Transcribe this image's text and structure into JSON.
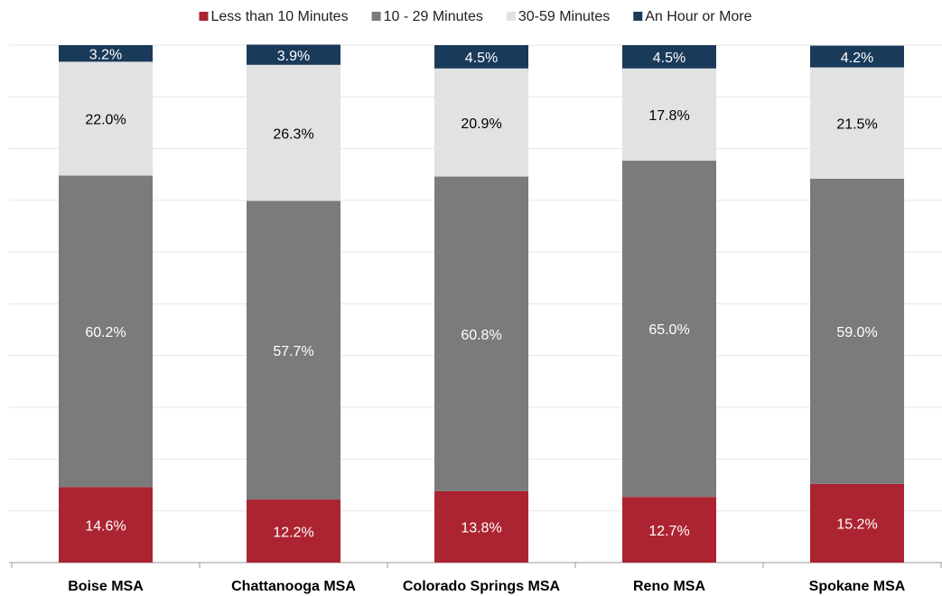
{
  "chart_data": {
    "type": "stacked_bar",
    "categories": [
      "Boise MSA",
      "Chattanooga MSA",
      "Colorado Springs MSA",
      "Reno MSA",
      "Spokane MSA"
    ],
    "series": [
      {
        "name": "Less than 10 Minutes",
        "color": "#ac2431",
        "label_color": "#ffffff",
        "values": [
          14.6,
          12.2,
          13.8,
          12.7,
          15.2
        ],
        "value_labels": [
          "14.6%",
          "12.2%",
          "13.8%",
          "12.7%",
          "15.2%"
        ]
      },
      {
        "name": "10 - 29 Minutes",
        "color": "#7b7b7b",
        "label_color": "#ffffff",
        "values": [
          60.2,
          57.7,
          60.8,
          65.0,
          59.0
        ],
        "value_labels": [
          "60.2%",
          "57.7%",
          "60.8%",
          "65.0%",
          "59.0%"
        ]
      },
      {
        "name": "30-59 Minutes",
        "color": "#e1e2e2",
        "label_color": "#000000",
        "values": [
          22.0,
          26.3,
          20.9,
          17.8,
          21.5
        ],
        "value_labels": [
          "22.0%",
          "26.3%",
          "20.9%",
          "17.8%",
          "21.5%"
        ]
      },
      {
        "name": "An Hour or More",
        "color": "#1a3a5a",
        "label_color": "#ffffff",
        "values": [
          3.2,
          3.9,
          4.5,
          4.5,
          4.2
        ],
        "value_labels": [
          "3.2%",
          "3.9%",
          "4.5%",
          "4.5%",
          "4.2%"
        ]
      }
    ],
    "ylim": [
      0,
      100
    ],
    "yticks": [
      0,
      10,
      20,
      30,
      40,
      50,
      60,
      70,
      80,
      90,
      100
    ],
    "grid": true,
    "legend": "top"
  }
}
